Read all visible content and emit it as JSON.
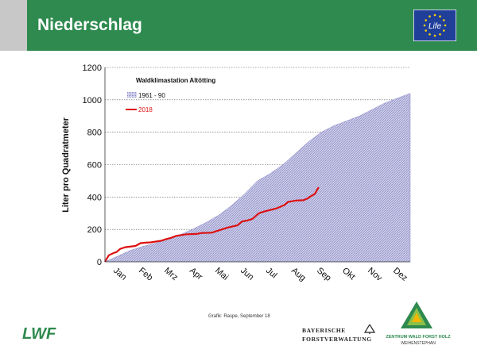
{
  "slide": {
    "title": "Niederschlag",
    "credit": "Grafik: Raspe, September 18",
    "logos": {
      "eu": {
        "text": "Life",
        "icon": "eu-life-logo-icon"
      },
      "lwf": {
        "text": "LWF",
        "icon": "lwf-logo-icon"
      },
      "bfv": {
        "line1": "BAYERISCHE",
        "line2": "FORSTVERWALTUNG"
      },
      "zwfh": {
        "line1": "ZENTRUM WALD FORST HOLZ",
        "line2": "WEIHENSTEPHAN"
      }
    }
  },
  "colors": {
    "header": "#2e8a4e",
    "area_fill": "#b9b9de",
    "line_2018": "#dd1111",
    "grid": "#555555"
  },
  "chart_data": {
    "type": "area",
    "title": "Waldklimastation Altötting",
    "ylabel": "Liter pro Quadratmeter",
    "xlabel": "",
    "ylim": [
      0,
      1200
    ],
    "yticks": [
      0,
      200,
      400,
      600,
      800,
      1000,
      1200
    ],
    "grid": "horizontal dashed",
    "legend_position": "top-left",
    "categories": [
      "Jan",
      "Feb",
      "Mrz",
      "Apr",
      "Mai",
      "Jun",
      "Jul",
      "Aug",
      "Sep",
      "Okt",
      "Nov",
      "Dez"
    ],
    "series": [
      {
        "name": "1961 - 90",
        "style": "area",
        "x": [
          0,
          0.5,
          1,
          1.5,
          2,
          2.5,
          3,
          3.5,
          4,
          4.5,
          5,
          5.5,
          6,
          6.5,
          7,
          7.5,
          8,
          8.5,
          9,
          9.5,
          10,
          10.5,
          11,
          11.5,
          12
        ],
        "values": [
          0,
          35,
          70,
          95,
          115,
          140,
          170,
          205,
          245,
          290,
          350,
          420,
          500,
          545,
          600,
          670,
          740,
          800,
          840,
          870,
          900,
          940,
          980,
          1010,
          1040
        ]
      },
      {
        "name": "2018",
        "style": "line",
        "x": [
          0,
          0.15,
          0.35,
          0.45,
          0.6,
          0.8,
          1.2,
          1.4,
          1.6,
          1.8,
          2.2,
          2.4,
          2.6,
          2.8,
          3,
          3.2,
          3.6,
          3.8,
          4.2,
          4.4,
          4.6,
          4.8,
          5.2,
          5.4,
          5.6,
          5.8,
          6.05,
          6.25,
          6.5,
          6.75,
          7.05,
          7.2,
          7.5,
          7.8,
          7.95,
          8.05,
          8.25,
          8.4
        ],
        "values": [
          0,
          40,
          55,
          60,
          80,
          90,
          98,
          115,
          118,
          120,
          130,
          140,
          148,
          160,
          165,
          170,
          172,
          178,
          180,
          190,
          200,
          210,
          225,
          250,
          255,
          265,
          300,
          310,
          320,
          330,
          350,
          370,
          378,
          380,
          390,
          400,
          420,
          460
        ]
      }
    ]
  }
}
